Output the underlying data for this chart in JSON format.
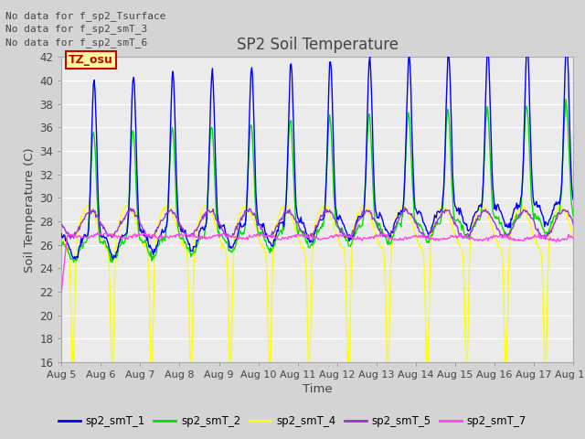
{
  "title": "SP2 Soil Temperature",
  "xlabel": "Time",
  "ylabel": "Soil Temperature (C)",
  "ylim": [
    16,
    42
  ],
  "yticks": [
    16,
    18,
    20,
    22,
    24,
    26,
    28,
    30,
    32,
    34,
    36,
    38,
    40,
    42
  ],
  "colors": {
    "sp2_smT_1": "#0000ff",
    "sp2_smT_2": "#00dd00",
    "sp2_smT_4": "#ffff00",
    "sp2_smT_5": "#9933cc",
    "sp2_smT_7": "#ff44ee"
  },
  "no_data_texts": [
    "No data for f_sp2_Tsurface",
    "No data for f_sp2_smT_3",
    "No data for f_sp2_smT_6"
  ],
  "tooltip_text": "TZ_osu",
  "tooltip_color": "#ffff99",
  "tooltip_border": "#cc0000",
  "plot_bg": "#ebebeb",
  "grid_color": "#ffffff",
  "fig_bg": "#d4d4d4",
  "legend_entries": [
    "sp2_smT_1",
    "sp2_smT_2",
    "sp2_smT_4",
    "sp2_smT_5",
    "sp2_smT_7"
  ]
}
